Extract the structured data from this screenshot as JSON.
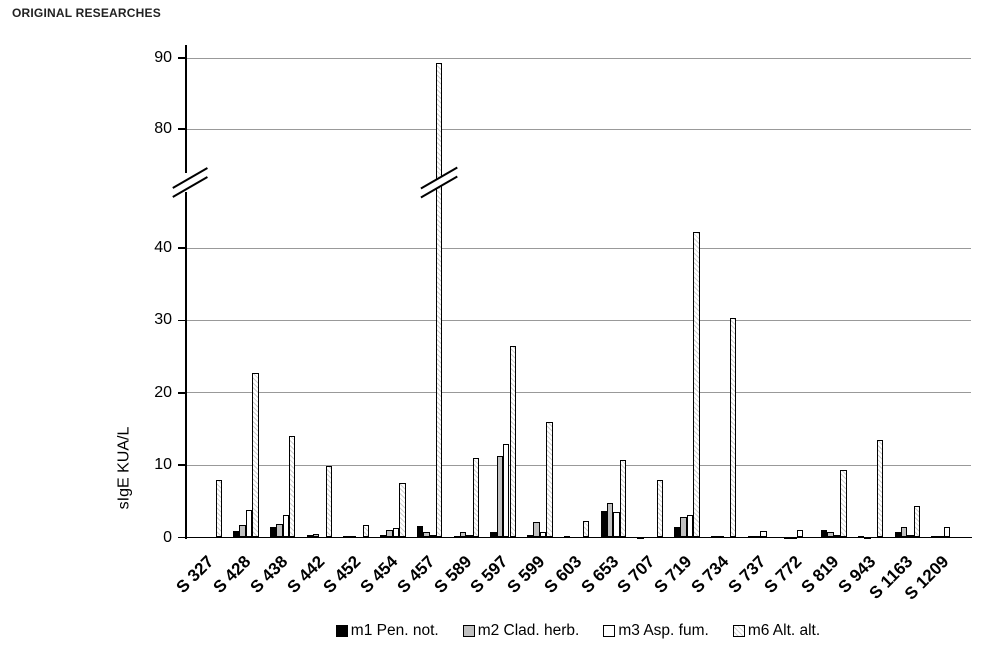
{
  "header": "ORIGINAL RESEARCHES",
  "chart_data": {
    "type": "bar",
    "ylabel": "sIgE KUA/L",
    "categories": [
      "S 327",
      "S 428",
      "S 438",
      "S 442",
      "S 452",
      "S 454",
      "S 457",
      "S 589",
      "S 597",
      "S 599",
      "S 603",
      "S 653",
      "S 707",
      "S 719",
      "S 734",
      "S 737",
      "S 772",
      "S 819",
      "S 943",
      "S 1163",
      "S 1209"
    ],
    "series": [
      {
        "key": "m1",
        "name": "m1 Pen. not.",
        "fill": "black",
        "values": [
          0,
          0.9,
          1.4,
          0.3,
          0.15,
          0.3,
          1.6,
          0.2,
          0.7,
          0.3,
          0.2,
          3.7,
          0.1,
          1.5,
          0.2,
          0.15,
          0.1,
          1.1,
          0.15,
          0.7,
          0.2
        ]
      },
      {
        "key": "m2",
        "name": "m2 Clad. herb.",
        "fill": "gray",
        "values": [
          0,
          1.7,
          1.8,
          0.5,
          0.2,
          1.0,
          0.7,
          0.8,
          11.2,
          2.1,
          0,
          4.7,
          0,
          2.9,
          0.2,
          0.15,
          0.1,
          0.7,
          0.1,
          1.4,
          0.2
        ]
      },
      {
        "key": "m3",
        "name": "m3 Asp. fum.",
        "fill": "white",
        "values": [
          0,
          3.8,
          3.1,
          0,
          0,
          1.3,
          0.4,
          0.4,
          12.9,
          0.8,
          0,
          3.5,
          0,
          3.1,
          0,
          0.9,
          1.0,
          0.4,
          0,
          0.4,
          1.5
        ]
      },
      {
        "key": "m6",
        "name": "m6 Alt. alt.",
        "fill": "hatch",
        "values": [
          8.0,
          22.7,
          14.0,
          9.9,
          1.7,
          7.6,
          89.3,
          11.0,
          26.5,
          16.0,
          2.3,
          10.7,
          8.0,
          42.2,
          30.3,
          0,
          0,
          9.3,
          13.5,
          4.3,
          0
        ]
      }
    ],
    "y_ticks_lower": [
      0,
      10,
      20,
      30,
      40
    ],
    "y_ticks_upper": [
      80,
      90
    ],
    "axis_break": true,
    "broken_bar": {
      "category": "S 457",
      "series": "m6",
      "value": 89.3
    },
    "grid": true,
    "legend_position": "bottom",
    "colors": {
      "bar_border": "#000000",
      "grid": "#999999",
      "m2_fill": "#c0c0c0",
      "hatch_line": "#cfcfcf"
    }
  }
}
